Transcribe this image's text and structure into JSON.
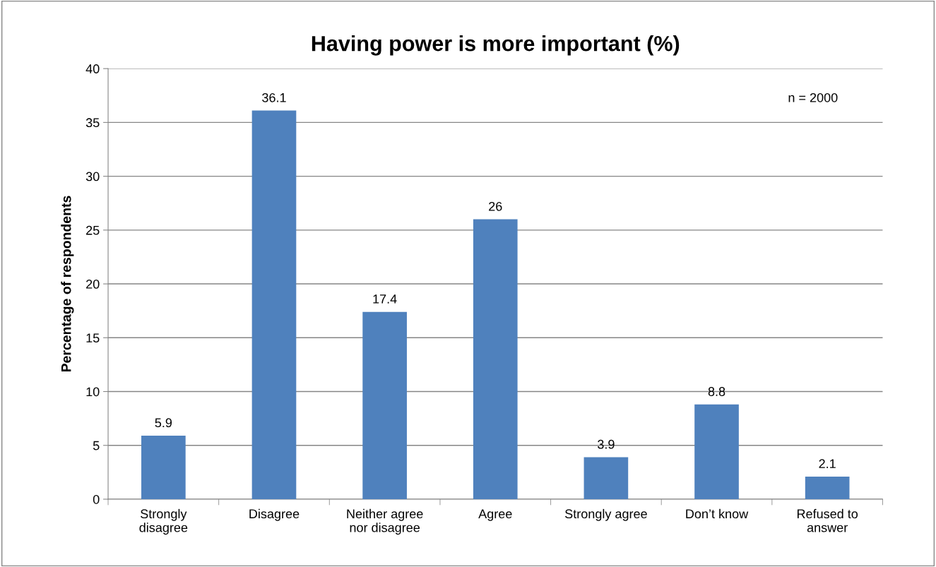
{
  "chart_data": {
    "type": "bar",
    "title": "Having power is more important (%)",
    "ylabel": "Percentage of respondents",
    "categories": [
      "Strongly\ndisagree",
      "Disagree",
      "Neither agree\nnor disagree",
      "Agree",
      "Strongly agree",
      "Don’t know",
      "Refused to\nanswer"
    ],
    "values": [
      5.9,
      36.1,
      17.4,
      26,
      3.9,
      8.8,
      2.1
    ],
    "color": "#4f81bd",
    "ylim": [
      0,
      40
    ],
    "yticks": [
      0,
      5,
      10,
      15,
      20,
      25,
      30,
      35,
      40
    ],
    "grid": "y",
    "data_labels": true,
    "legend": false,
    "annotations": [
      "n = 2000"
    ]
  }
}
